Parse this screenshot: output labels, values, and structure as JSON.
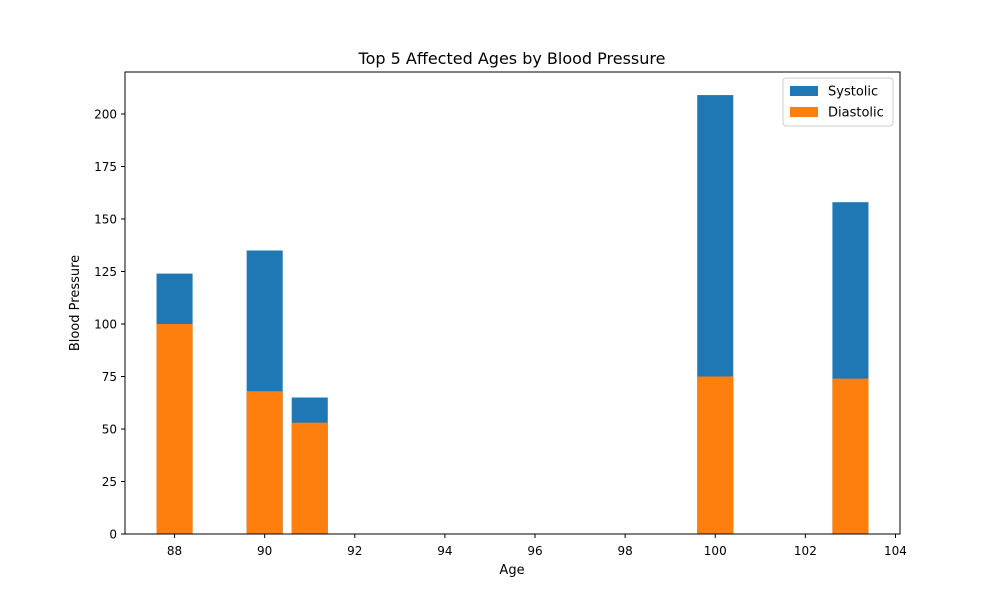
{
  "chart_data": {
    "type": "bar",
    "stacked": false,
    "overlay": true,
    "title": "Top 5 Affected Ages by Blood Pressure",
    "xlabel": "Age",
    "ylabel": "Blood Pressure",
    "x": [
      88,
      90,
      91,
      100,
      103
    ],
    "series": [
      {
        "name": "Systolic",
        "color": "#1f77b4",
        "values": [
          124,
          135,
          65,
          209,
          158
        ]
      },
      {
        "name": "Diastolic",
        "color": "#ff7f0e",
        "values": [
          100,
          68,
          53,
          75,
          74
        ]
      }
    ],
    "xlim": [
      86.9,
      104.1
    ],
    "ylim": [
      0,
      220
    ],
    "xticks": [
      88,
      90,
      92,
      94,
      96,
      98,
      100,
      102,
      104
    ],
    "yticks": [
      0,
      25,
      50,
      75,
      100,
      125,
      150,
      175,
      200
    ],
    "bar_width": 0.8,
    "grid": false,
    "legend_position": "upper right"
  }
}
